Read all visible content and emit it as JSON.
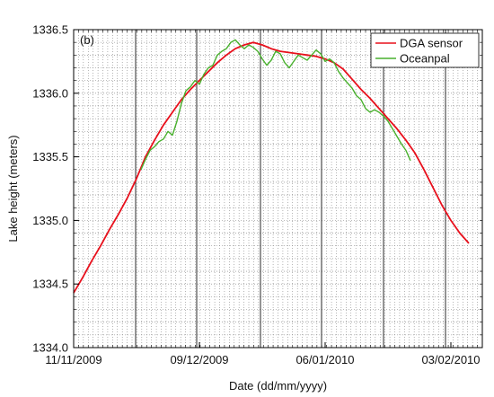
{
  "chart_data": {
    "type": "line",
    "panel_label": "(b)",
    "xlabel": "Date (dd/mm/yyyy)",
    "ylabel": "Lake height (meters)",
    "xlim": [
      "2009-11-11",
      "2010-02-10"
    ],
    "ylim": [
      1334.0,
      1336.5
    ],
    "y_ticks": [
      1334.0,
      1334.5,
      1335.0,
      1335.5,
      1336.0,
      1336.5
    ],
    "y_tick_labels": [
      "1334.0",
      "1334.5",
      "1335.0",
      "1335.5",
      "1336.0",
      "1336.5"
    ],
    "x_ticks": [
      "2009-11-11",
      "2009-12-09",
      "2010-01-06",
      "2010-02-03"
    ],
    "x_tick_labels": [
      "11/11/2009",
      "09/12/2009",
      "06/01/2010",
      "03/02/2010"
    ],
    "grid": "dotted minor grid on both axes",
    "legend_position": "top-right",
    "series": [
      {
        "name": "DGA sensor",
        "color": "#e8101c",
        "points": [
          [
            "2009-11-11",
            1334.43
          ],
          [
            "2009-11-13",
            1334.55
          ],
          [
            "2009-11-15",
            1334.68
          ],
          [
            "2009-11-17",
            1334.8
          ],
          [
            "2009-11-19",
            1334.93
          ],
          [
            "2009-11-21",
            1335.05
          ],
          [
            "2009-11-23",
            1335.18
          ],
          [
            "2009-11-25",
            1335.33
          ],
          [
            "2009-11-27",
            1335.5
          ],
          [
            "2009-11-29",
            1335.63
          ],
          [
            "2009-12-01",
            1335.75
          ],
          [
            "2009-12-03",
            1335.85
          ],
          [
            "2009-12-05",
            1335.95
          ],
          [
            "2009-12-07",
            1336.03
          ],
          [
            "2009-12-09",
            1336.1
          ],
          [
            "2009-12-11",
            1336.17
          ],
          [
            "2009-12-13",
            1336.24
          ],
          [
            "2009-12-15",
            1336.3
          ],
          [
            "2009-12-17",
            1336.35
          ],
          [
            "2009-12-19",
            1336.38
          ],
          [
            "2009-12-21",
            1336.4
          ],
          [
            "2009-12-23",
            1336.38
          ],
          [
            "2009-12-25",
            1336.35
          ],
          [
            "2009-12-27",
            1336.33
          ],
          [
            "2009-12-29",
            1336.32
          ],
          [
            "2009-12-31",
            1336.31
          ],
          [
            "2010-01-02",
            1336.3
          ],
          [
            "2010-01-04",
            1336.29
          ],
          [
            "2010-01-06",
            1336.27
          ],
          [
            "2010-01-08",
            1336.24
          ],
          [
            "2010-01-10",
            1336.19
          ],
          [
            "2010-01-12",
            1336.11
          ],
          [
            "2010-01-14",
            1336.03
          ],
          [
            "2010-01-16",
            1335.96
          ],
          [
            "2010-01-18",
            1335.88
          ],
          [
            "2010-01-20",
            1335.8
          ],
          [
            "2010-01-22",
            1335.72
          ],
          [
            "2010-01-24",
            1335.63
          ],
          [
            "2010-01-26",
            1335.53
          ],
          [
            "2010-01-28",
            1335.4
          ],
          [
            "2010-01-30",
            1335.26
          ],
          [
            "2010-02-01",
            1335.12
          ],
          [
            "2010-02-03",
            1335.0
          ],
          [
            "2010-02-05",
            1334.9
          ],
          [
            "2010-02-07",
            1334.82
          ]
        ]
      },
      {
        "name": "Oceanpal",
        "color": "#49b12e",
        "points": [
          [
            "2009-11-26",
            1335.4
          ],
          [
            "2009-11-27",
            1335.48
          ],
          [
            "2009-11-28",
            1335.55
          ],
          [
            "2009-11-29",
            1335.58
          ],
          [
            "2009-11-30",
            1335.62
          ],
          [
            "2009-12-01",
            1335.64
          ],
          [
            "2009-12-02",
            1335.7
          ],
          [
            "2009-12-03",
            1335.67
          ],
          [
            "2009-12-04",
            1335.78
          ],
          [
            "2009-12-05",
            1335.92
          ],
          [
            "2009-12-06",
            1336.02
          ],
          [
            "2009-12-07",
            1336.05
          ],
          [
            "2009-12-08",
            1336.1
          ],
          [
            "2009-12-09",
            1336.07
          ],
          [
            "2009-12-10",
            1336.15
          ],
          [
            "2009-12-11",
            1336.2
          ],
          [
            "2009-12-12",
            1336.22
          ],
          [
            "2009-12-13",
            1336.3
          ],
          [
            "2009-12-14",
            1336.33
          ],
          [
            "2009-12-15",
            1336.35
          ],
          [
            "2009-12-16",
            1336.4
          ],
          [
            "2009-12-17",
            1336.42
          ],
          [
            "2009-12-18",
            1336.38
          ],
          [
            "2009-12-19",
            1336.35
          ],
          [
            "2009-12-20",
            1336.38
          ],
          [
            "2009-12-21",
            1336.36
          ],
          [
            "2009-12-22",
            1336.33
          ],
          [
            "2009-12-23",
            1336.27
          ],
          [
            "2009-12-24",
            1336.22
          ],
          [
            "2009-12-25",
            1336.26
          ],
          [
            "2009-12-26",
            1336.33
          ],
          [
            "2009-12-27",
            1336.31
          ],
          [
            "2009-12-28",
            1336.24
          ],
          [
            "2009-12-29",
            1336.2
          ],
          [
            "2009-12-30",
            1336.25
          ],
          [
            "2009-12-31",
            1336.3
          ],
          [
            "2010-01-01",
            1336.28
          ],
          [
            "2010-01-02",
            1336.26
          ],
          [
            "2010-01-03",
            1336.3
          ],
          [
            "2010-01-04",
            1336.34
          ],
          [
            "2010-01-05",
            1336.31
          ],
          [
            "2010-01-06",
            1336.25
          ],
          [
            "2010-01-07",
            1336.27
          ],
          [
            "2010-01-08",
            1336.24
          ],
          [
            "2010-01-09",
            1336.17
          ],
          [
            "2010-01-10",
            1336.12
          ],
          [
            "2010-01-11",
            1336.08
          ],
          [
            "2010-01-12",
            1336.04
          ],
          [
            "2010-01-13",
            1335.98
          ],
          [
            "2010-01-14",
            1335.95
          ],
          [
            "2010-01-15",
            1335.88
          ],
          [
            "2010-01-16",
            1335.85
          ],
          [
            "2010-01-17",
            1335.87
          ],
          [
            "2010-01-18",
            1335.85
          ],
          [
            "2010-01-19",
            1335.82
          ],
          [
            "2010-01-20",
            1335.78
          ],
          [
            "2010-01-21",
            1335.72
          ],
          [
            "2010-01-22",
            1335.66
          ],
          [
            "2010-01-23",
            1335.6
          ],
          [
            "2010-01-24",
            1335.55
          ],
          [
            "2010-01-25",
            1335.47
          ]
        ]
      }
    ]
  }
}
